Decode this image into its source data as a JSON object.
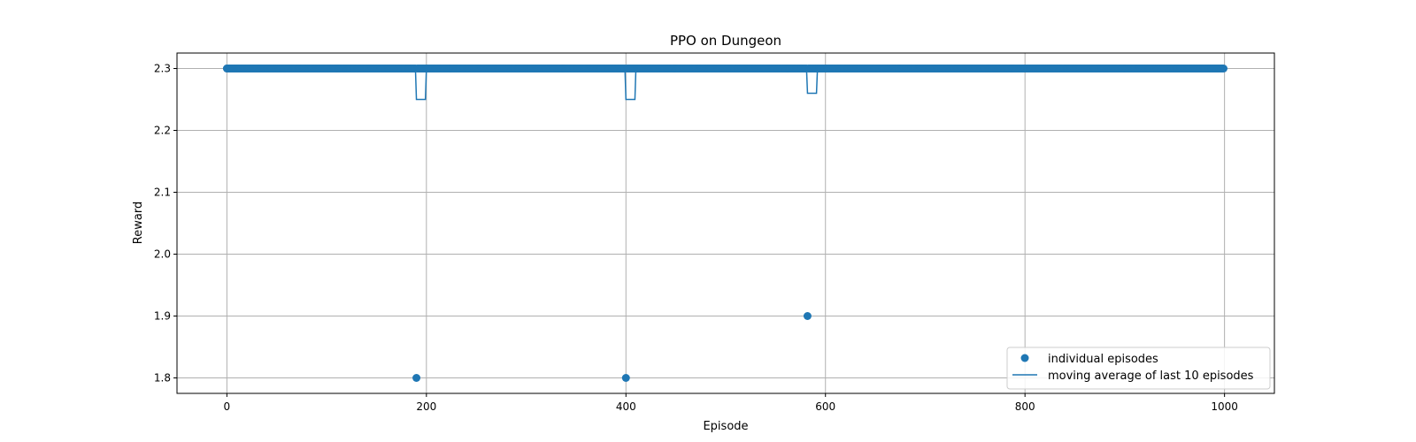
{
  "chart_data": {
    "type": "scatter",
    "title": "PPO on Dungeon",
    "xlabel": "Episode",
    "ylabel": "Reward",
    "xlim": [
      -50,
      1050
    ],
    "ylim": [
      1.775,
      2.325
    ],
    "xticks": [
      0,
      200,
      400,
      600,
      800,
      1000
    ],
    "xtick_labels": [
      "0",
      "200",
      "400",
      "600",
      "800",
      "1000"
    ],
    "yticks": [
      1.8,
      1.9,
      2.0,
      2.1,
      2.2,
      2.3
    ],
    "ytick_labels": [
      "1.8",
      "1.9",
      "2.0",
      "2.1",
      "2.2",
      "2.3"
    ],
    "grid": true,
    "legend_position": "lower-right",
    "colors": {
      "series": "#1f77b4"
    },
    "series": [
      {
        "name": "individual episodes",
        "kind": "scatter",
        "x_range": [
          0,
          999
        ],
        "default_y": 2.3,
        "exceptions": [
          {
            "x": 190,
            "y": 1.8
          },
          {
            "x": 400,
            "y": 1.8
          },
          {
            "x": 582,
            "y": 1.9
          }
        ]
      },
      {
        "name": "moving average of last 10 episodes",
        "kind": "line",
        "window": 10
      }
    ]
  }
}
